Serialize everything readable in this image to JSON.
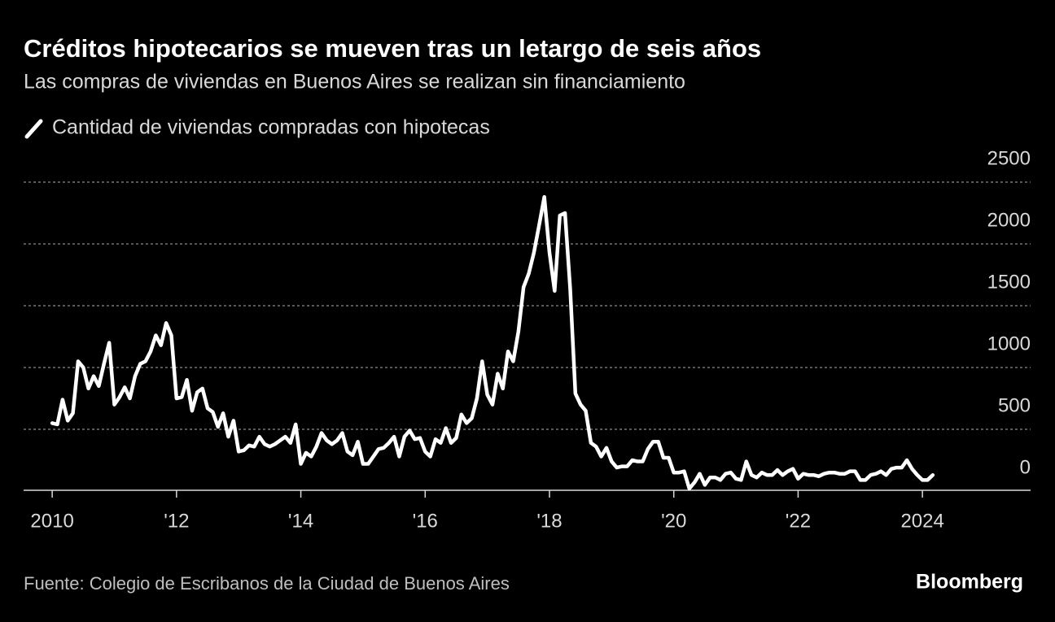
{
  "chart_data": {
    "type": "line",
    "title": "Créditos hipotecarios se mueven tras un letargo de seis años",
    "subtitle": "Las compras de viviendas en Buenos Aires se realizan sin financiamiento",
    "source": "Fuente: Colegio de Escribanos de la Ciudad de Buenos Aires",
    "brand": "Bloomberg",
    "x": [
      2010,
      2010.083,
      2010.167,
      2010.25,
      2010.333,
      2010.417,
      2010.5,
      2010.583,
      2010.667,
      2010.75,
      2010.833,
      2010.917,
      2011,
      2011.083,
      2011.167,
      2011.25,
      2011.333,
      2011.417,
      2011.5,
      2011.583,
      2011.667,
      2011.75,
      2011.833,
      2011.917,
      2012,
      2012.083,
      2012.167,
      2012.25,
      2012.333,
      2012.417,
      2012.5,
      2012.583,
      2012.667,
      2012.75,
      2012.833,
      2012.917,
      2013,
      2013.083,
      2013.167,
      2013.25,
      2013.333,
      2013.417,
      2013.5,
      2013.583,
      2013.667,
      2013.75,
      2013.833,
      2013.917,
      2014,
      2014.083,
      2014.167,
      2014.25,
      2014.333,
      2014.417,
      2014.5,
      2014.583,
      2014.667,
      2014.75,
      2014.833,
      2014.917,
      2015,
      2015.083,
      2015.167,
      2015.25,
      2015.333,
      2015.417,
      2015.5,
      2015.583,
      2015.667,
      2015.75,
      2015.833,
      2015.917,
      2016,
      2016.083,
      2016.167,
      2016.25,
      2016.333,
      2016.417,
      2016.5,
      2016.583,
      2016.667,
      2016.75,
      2016.833,
      2016.917,
      2017,
      2017.083,
      2017.167,
      2017.25,
      2017.333,
      2017.417,
      2017.5,
      2017.583,
      2017.667,
      2017.75,
      2017.833,
      2017.917,
      2018,
      2018.083,
      2018.167,
      2018.25,
      2018.333,
      2018.417,
      2018.5,
      2018.583,
      2018.667,
      2018.75,
      2018.833,
      2018.917,
      2019,
      2019.083,
      2019.167,
      2019.25,
      2019.333,
      2019.417,
      2019.5,
      2019.583,
      2019.667,
      2019.75,
      2019.833,
      2019.917,
      2020,
      2020.083,
      2020.167,
      2020.25,
      2020.333,
      2020.417,
      2020.5,
      2020.583,
      2020.667,
      2020.75,
      2020.833,
      2020.917,
      2021,
      2021.083,
      2021.167,
      2021.25,
      2021.333,
      2021.417,
      2021.5,
      2021.583,
      2021.667,
      2021.75,
      2021.833,
      2021.917,
      2022,
      2022.083,
      2022.167,
      2022.25,
      2022.333,
      2022.417,
      2022.5,
      2022.583,
      2022.667,
      2022.75,
      2022.833,
      2022.917,
      2023,
      2023.083,
      2023.167,
      2023.25,
      2023.333,
      2023.417,
      2023.5,
      2023.583,
      2023.667,
      2023.75,
      2023.833,
      2023.917,
      2024,
      2024.083,
      2024.167
    ],
    "series": [
      {
        "name": "Cantidad de viviendas compradas con hipotecas",
        "color": "#ffffff",
        "values": [
          550,
          540,
          740,
          570,
          630,
          1050,
          1000,
          830,
          930,
          850,
          1030,
          1200,
          700,
          760,
          840,
          750,
          930,
          1030,
          1050,
          1130,
          1260,
          1180,
          1360,
          1260,
          750,
          760,
          900,
          650,
          800,
          830,
          670,
          640,
          520,
          630,
          440,
          570,
          320,
          330,
          370,
          360,
          440,
          380,
          360,
          380,
          410,
          440,
          390,
          540,
          220,
          310,
          280,
          360,
          470,
          410,
          380,
          410,
          470,
          320,
          290,
          400,
          220,
          220,
          280,
          340,
          350,
          390,
          440,
          280,
          440,
          490,
          420,
          430,
          320,
          280,
          420,
          390,
          510,
          390,
          430,
          620,
          550,
          590,
          750,
          1050,
          780,
          700,
          950,
          830,
          1130,
          1050,
          1290,
          1650,
          1760,
          1930,
          2150,
          2380,
          1930,
          1620,
          2230,
          2250,
          1640,
          790,
          700,
          650,
          390,
          360,
          280,
          350,
          240,
          190,
          200,
          200,
          250,
          240,
          240,
          340,
          400,
          400,
          270,
          270,
          150,
          150,
          160,
          20,
          70,
          140,
          50,
          110,
          110,
          90,
          140,
          150,
          100,
          90,
          240,
          130,
          110,
          150,
          130,
          130,
          170,
          130,
          160,
          180,
          100,
          140,
          130,
          130,
          120,
          140,
          150,
          150,
          140,
          140,
          160,
          160,
          90,
          90,
          130,
          140,
          160,
          130,
          180,
          190,
          190,
          250,
          180,
          130,
          90,
          90,
          130
        ]
      }
    ],
    "xlim": [
      2009.54,
      2025.74
    ],
    "xticks": [
      2010,
      {
        "value": 2012,
        "label": "'12"
      },
      {
        "value": 2014,
        "label": "'14"
      },
      {
        "value": 2016,
        "label": "'16"
      },
      {
        "value": 2018,
        "label": "'18"
      },
      {
        "value": 2020,
        "label": "'20"
      },
      {
        "value": 2022,
        "label": "'22"
      },
      2024
    ],
    "ylim": [
      0,
      2500
    ],
    "yticks": [
      0,
      500,
      1000,
      1500,
      2000,
      2500
    ],
    "grid": true
  }
}
